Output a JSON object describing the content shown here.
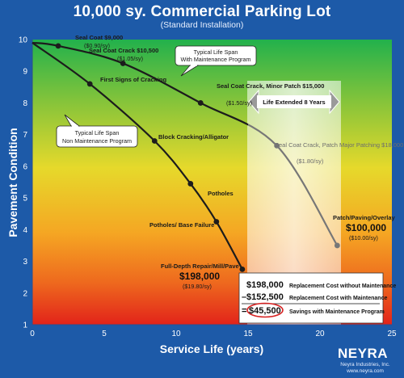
{
  "chart_data": {
    "type": "line",
    "title": "10,000 sy. Commercial Parking Lot",
    "subtitle": "(Standard Installation)",
    "xlabel": "Service Life (years)",
    "ylabel": "Pavement Condition",
    "xlim": [
      0,
      25
    ],
    "ylim": [
      1,
      10
    ],
    "x_ticks": [
      "0",
      "5",
      "10",
      "15",
      "20",
      "25"
    ],
    "y_ticks": [
      "1",
      "2",
      "3",
      "4",
      "5",
      "6",
      "7",
      "8",
      "9",
      "10"
    ],
    "series": [
      {
        "name": "Typical Life Span Non Maintenance Program",
        "points": [
          [
            0,
            9.9
          ],
          [
            4,
            8.6
          ],
          [
            8.5,
            6.8
          ],
          [
            11,
            5.45
          ],
          [
            12.8,
            4.25
          ],
          [
            14.6,
            2.75
          ]
        ]
      },
      {
        "name": "Typical Life Span With Maintenance Program",
        "points": [
          [
            0,
            9.9
          ],
          [
            1.8,
            9.8
          ],
          [
            6.3,
            9.25
          ],
          [
            11.7,
            8.0
          ],
          [
            17,
            6.65
          ],
          [
            21.2,
            3.5
          ]
        ]
      }
    ],
    "annotations": [
      {
        "label": "Seal Coat $9,000",
        "detail": "($0.90/sy)"
      },
      {
        "label": "Seal Coat Crack $10,500",
        "detail": "($1.05/sy)"
      },
      {
        "label": "Seal Coat Crack, Minor Patch $15,000",
        "detail": "($1.50/sy)"
      },
      {
        "label": "Seal Coat Crack, Patch Major Patching $18,000",
        "detail": "($1.80/sy)"
      },
      {
        "label": "Patch/Paving/Overlay",
        "detail": "$100,000",
        "detail2": "($10.00/sy)"
      },
      {
        "label": "First Signs of Cracking"
      },
      {
        "label": "Block Cracking/Alligator"
      },
      {
        "label": "Potholes"
      },
      {
        "label": "Potholes/ Base Failure"
      },
      {
        "label": "Full-Depth Repair/Mill/Pave",
        "detail": "$198,000",
        "detail2": "($19.80/sy)"
      }
    ],
    "callout": "Life Extended 8 Years",
    "legend_with": [
      "Typical Life Span",
      "With Maintenance Program"
    ],
    "legend_without": [
      "Typical Life Span",
      "Non Maintenance Program"
    ]
  },
  "summary": {
    "rows": [
      {
        "prefix": "",
        "amount": "$198,000",
        "label": "Replacement Cost without Maintenance"
      },
      {
        "prefix": "–",
        "amount": "$152,500",
        "label": "Replacement Cost with Maintenance"
      },
      {
        "prefix": "=",
        "amount": "$45,500",
        "label": "Savings with Maintenance Program"
      }
    ]
  },
  "logo": {
    "name": "NEYRA",
    "company": "Neyra Industries, Inc.",
    "url": "www.neyra.com"
  },
  "colors": {
    "line": "#1c1c1c",
    "line_extended": "#777777",
    "callout_arrow": "#9a9a9a",
    "savings_circle": "#d62020"
  }
}
